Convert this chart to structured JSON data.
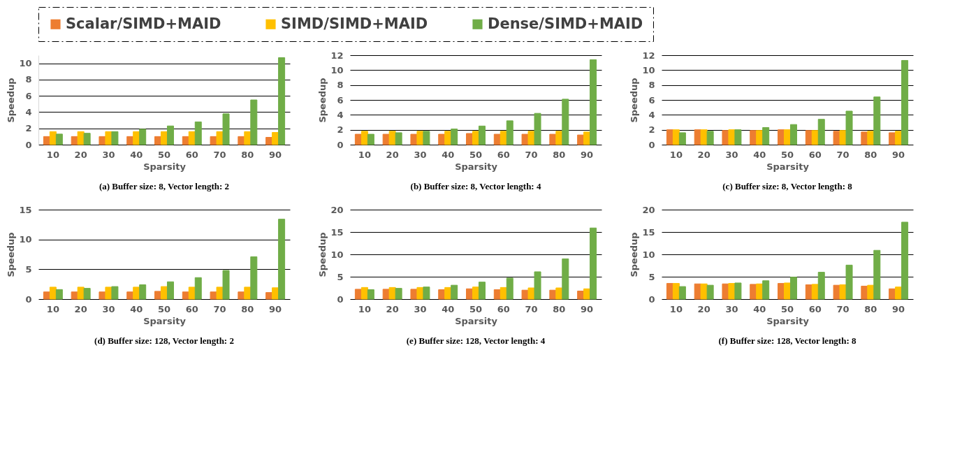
{
  "chart_data": [
    {
      "type": "bar",
      "title": "(a) Buffer size: 8, Vector length: 2",
      "xlabel": "Sparsity",
      "ylabel": "Speedup",
      "categories": [
        "10",
        "20",
        "30",
        "40",
        "50",
        "60",
        "70",
        "80",
        "90"
      ],
      "ylim": [
        0,
        11
      ],
      "yticks": [
        0,
        2,
        4,
        6,
        8,
        10
      ],
      "grid": "y",
      "legend": "top",
      "series": [
        {
          "name": "Scalar/SIMD+MAID",
          "color": "#ed7d31",
          "values": [
            1.0,
            1.0,
            1.0,
            1.0,
            1.0,
            1.0,
            1.0,
            1.0,
            0.9
          ]
        },
        {
          "name": "SIMD/SIMD+MAID",
          "color": "#ffc000",
          "values": [
            1.6,
            1.6,
            1.6,
            1.6,
            1.6,
            1.6,
            1.6,
            1.6,
            1.5
          ]
        },
        {
          "name": "Dense/SIMD+MAID",
          "color": "#70ad47",
          "values": [
            1.3,
            1.4,
            1.6,
            1.9,
            2.3,
            2.8,
            3.8,
            5.5,
            10.7
          ]
        }
      ]
    },
    {
      "type": "bar",
      "title": "(b) Buffer size: 8, Vector length: 4",
      "xlabel": "Sparsity",
      "ylabel": "Speedup",
      "categories": [
        "10",
        "20",
        "30",
        "40",
        "50",
        "60",
        "70",
        "80",
        "90"
      ],
      "ylim": [
        0,
        12
      ],
      "yticks": [
        0,
        2,
        4,
        6,
        8,
        10,
        12
      ],
      "grid": "y",
      "legend": "top",
      "series": [
        {
          "name": "Scalar/SIMD+MAID",
          "color": "#ed7d31",
          "values": [
            1.4,
            1.4,
            1.4,
            1.4,
            1.5,
            1.4,
            1.4,
            1.4,
            1.3
          ]
        },
        {
          "name": "SIMD/SIMD+MAID",
          "color": "#ffc000",
          "values": [
            1.8,
            1.8,
            1.8,
            1.8,
            1.8,
            1.8,
            1.8,
            1.8,
            1.7
          ]
        },
        {
          "name": "Dense/SIMD+MAID",
          "color": "#70ad47",
          "values": [
            1.4,
            1.6,
            1.8,
            2.1,
            2.5,
            3.2,
            4.2,
            6.1,
            11.4
          ]
        }
      ]
    },
    {
      "type": "bar",
      "title": "(c) Buffer size: 8, Vector length: 8",
      "xlabel": "Sparsity",
      "ylabel": "Speedup",
      "categories": [
        "10",
        "20",
        "30",
        "40",
        "50",
        "60",
        "70",
        "80",
        "90"
      ],
      "ylim": [
        0,
        12
      ],
      "yticks": [
        0,
        2,
        4,
        6,
        8,
        10,
        12
      ],
      "grid": "y",
      "legend": "top",
      "series": [
        {
          "name": "Scalar/SIMD+MAID",
          "color": "#ed7d31",
          "values": [
            2.0,
            2.0,
            1.9,
            1.9,
            2.0,
            1.9,
            1.8,
            1.7,
            1.6
          ]
        },
        {
          "name": "SIMD/SIMD+MAID",
          "color": "#ffc000",
          "values": [
            2.0,
            2.0,
            2.0,
            1.9,
            2.0,
            1.9,
            1.9,
            1.8,
            1.8
          ]
        },
        {
          "name": "Dense/SIMD+MAID",
          "color": "#70ad47",
          "values": [
            1.6,
            1.8,
            2.0,
            2.3,
            2.7,
            3.4,
            4.5,
            6.4,
            11.3
          ]
        }
      ]
    },
    {
      "type": "bar",
      "title": "(d) Buffer size: 128, Vector length: 2",
      "xlabel": "Sparsity",
      "ylabel": "Speedup",
      "categories": [
        "10",
        "20",
        "30",
        "40",
        "50",
        "60",
        "70",
        "80",
        "90"
      ],
      "ylim": [
        0,
        15
      ],
      "yticks": [
        0,
        5,
        10,
        15
      ],
      "grid": "y",
      "legend": "top",
      "series": [
        {
          "name": "Scalar/SIMD+MAID",
          "color": "#ed7d31",
          "values": [
            1.2,
            1.2,
            1.2,
            1.2,
            1.3,
            1.2,
            1.2,
            1.2,
            1.1
          ]
        },
        {
          "name": "SIMD/SIMD+MAID",
          "color": "#ffc000",
          "values": [
            2.0,
            2.0,
            2.0,
            2.0,
            2.1,
            2.0,
            2.0,
            2.0,
            1.9
          ]
        },
        {
          "name": "Dense/SIMD+MAID",
          "color": "#70ad47",
          "values": [
            1.6,
            1.8,
            2.1,
            2.4,
            2.9,
            3.6,
            4.8,
            7.1,
            13.4
          ]
        }
      ]
    },
    {
      "type": "bar",
      "title": "(e) Buffer size: 128, Vector length: 4",
      "xlabel": "Sparsity",
      "ylabel": "Speedup",
      "categories": [
        "10",
        "20",
        "30",
        "40",
        "50",
        "60",
        "70",
        "80",
        "90"
      ],
      "ylim": [
        0,
        20
      ],
      "yticks": [
        0,
        5,
        10,
        15,
        20
      ],
      "grid": "y",
      "legend": "top",
      "series": [
        {
          "name": "Scalar/SIMD+MAID",
          "color": "#ed7d31",
          "values": [
            2.2,
            2.2,
            2.2,
            2.1,
            2.3,
            2.1,
            2.0,
            2.0,
            1.8
          ]
        },
        {
          "name": "SIMD/SIMD+MAID",
          "color": "#ffc000",
          "values": [
            2.6,
            2.6,
            2.6,
            2.6,
            2.7,
            2.6,
            2.5,
            2.5,
            2.3
          ]
        },
        {
          "name": "Dense/SIMD+MAID",
          "color": "#70ad47",
          "values": [
            2.1,
            2.4,
            2.7,
            3.1,
            3.8,
            4.7,
            6.1,
            9.0,
            15.9
          ]
        }
      ]
    },
    {
      "type": "bar",
      "title": "(f) Buffer size: 128, Vector length: 8",
      "xlabel": "Sparsity",
      "ylabel": "Speedup",
      "categories": [
        "10",
        "20",
        "30",
        "40",
        "50",
        "60",
        "70",
        "80",
        "90"
      ],
      "ylim": [
        0,
        20
      ],
      "yticks": [
        0,
        5,
        10,
        15,
        20
      ],
      "grid": "y",
      "legend": "top",
      "series": [
        {
          "name": "Scalar/SIMD+MAID",
          "color": "#ed7d31",
          "values": [
            3.5,
            3.4,
            3.4,
            3.3,
            3.5,
            3.2,
            3.1,
            2.9,
            2.3
          ]
        },
        {
          "name": "SIMD/SIMD+MAID",
          "color": "#ffc000",
          "values": [
            3.5,
            3.4,
            3.5,
            3.4,
            3.6,
            3.3,
            3.2,
            3.1,
            2.7
          ]
        },
        {
          "name": "Dense/SIMD+MAID",
          "color": "#70ad47",
          "values": [
            2.8,
            3.1,
            3.6,
            4.1,
            4.9,
            6.0,
            7.6,
            10.9,
            17.2
          ]
        }
      ]
    }
  ]
}
